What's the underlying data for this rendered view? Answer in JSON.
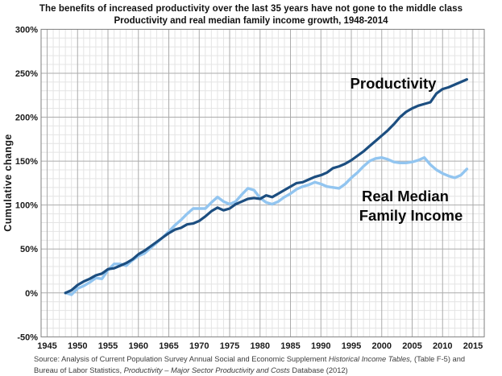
{
  "chart_data": {
    "type": "line",
    "title": "The benefits of increased productivity over the last 35 years have not gone to the middle class",
    "subtitle": "Productivity and real median family income growth, 1948-2014",
    "xlabel": "",
    "ylabel": "Cumulative change",
    "ylim": [
      -50,
      300
    ],
    "xlim": [
      1945,
      2017
    ],
    "grid": "minor gridlines every 1 year / 10%, major every 5 years / 50%",
    "legend_position": "inline annotations on plot",
    "x_ticks": [
      1945,
      1950,
      1955,
      1960,
      1965,
      1970,
      1975,
      1980,
      1985,
      1990,
      1995,
      2000,
      2005,
      2010,
      2015
    ],
    "y_tick_values": [
      300,
      250,
      200,
      150,
      100,
      50,
      0,
      -50
    ],
    "y_tick_labels": [
      "300%",
      "250%",
      "200%",
      "150%",
      "100%",
      "50%",
      "0%",
      "-50%"
    ],
    "years": [
      1948,
      1949,
      1950,
      1951,
      1952,
      1953,
      1954,
      1955,
      1956,
      1957,
      1958,
      1959,
      1960,
      1961,
      1962,
      1963,
      1964,
      1965,
      1966,
      1967,
      1968,
      1969,
      1970,
      1971,
      1972,
      1973,
      1974,
      1975,
      1976,
      1977,
      1978,
      1979,
      1980,
      1981,
      1982,
      1983,
      1984,
      1985,
      1986,
      1987,
      1988,
      1989,
      1990,
      1991,
      1992,
      1993,
      1994,
      1995,
      1996,
      1997,
      1998,
      1999,
      2000,
      2001,
      2002,
      2003,
      2004,
      2005,
      2006,
      2007,
      2008,
      2009,
      2010,
      2011,
      2012,
      2013,
      2014
    ],
    "series": [
      {
        "name": "Real Median Family Income",
        "color": "#92C5F0",
        "stroke_width": 3.4,
        "values": [
          0,
          -2,
          5,
          8,
          12,
          17,
          16,
          26,
          33,
          33,
          31,
          37,
          42,
          45,
          51,
          57,
          63,
          70,
          77,
          83,
          90,
          96,
          96,
          96,
          103,
          109,
          104,
          101,
          104,
          112,
          119,
          117,
          108,
          103,
          101,
          104,
          109,
          113,
          118,
          121,
          123,
          126,
          124,
          121,
          120,
          119,
          124,
          131,
          137,
          144,
          150,
          153,
          154,
          152,
          149,
          148,
          148,
          149,
          151,
          154,
          146,
          140,
          136,
          133,
          131,
          134,
          141
        ]
      },
      {
        "name": "Productivity",
        "color": "#1C4E80",
        "stroke_width": 3.2,
        "values": [
          0,
          3,
          9,
          13,
          16,
          20,
          22,
          27,
          28,
          31,
          34,
          38,
          44,
          48,
          53,
          58,
          63,
          68,
          72,
          74,
          78,
          79,
          82,
          87,
          93,
          97,
          94,
          96,
          101,
          104,
          107,
          108,
          107,
          111,
          109,
          113,
          117,
          121,
          125,
          126,
          129,
          132,
          134,
          137,
          142,
          144,
          147,
          151,
          156,
          161,
          167,
          173,
          179,
          185,
          192,
          200,
          206,
          210,
          213,
          215,
          217,
          227,
          232,
          234,
          237,
          240,
          243
        ]
      }
    ],
    "annotations": {
      "productivity": "Productivity",
      "income_line1": "Real Median",
      "income_line2": "Family Income"
    }
  },
  "source": {
    "line1_pre": "Source:  Analysis of Current Population Survey Annual Social and Economic Supplement ",
    "line1_italic": "Historical Income Tables,",
    "line1_post": " (Table F-5) and",
    "line2_pre": "Bureau of Labor Statistics, ",
    "line2_italic": "Productivity – Major Sector Productivity and Costs",
    "line2_post": " Database (2012)"
  }
}
